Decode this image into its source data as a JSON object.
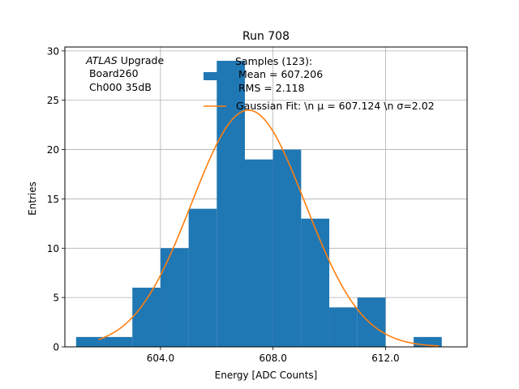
{
  "chart_data": {
    "type": "bar",
    "title": "Run 708",
    "xlabel": "Energy [ADC Counts]",
    "ylabel": "Entries",
    "xlim": [
      600.6,
      614.9
    ],
    "ylim": [
      0,
      30.4
    ],
    "grid": true,
    "x_ticks": [
      {
        "value": 604.0,
        "label": "604.0"
      },
      {
        "value": 608.0,
        "label": "608.0"
      },
      {
        "value": 612.0,
        "label": "612.0"
      }
    ],
    "y_ticks": [
      {
        "value": 0,
        "label": "0"
      },
      {
        "value": 5,
        "label": "5"
      },
      {
        "value": 10,
        "label": "10"
      },
      {
        "value": 15,
        "label": "15"
      },
      {
        "value": 20,
        "label": "20"
      },
      {
        "value": 25,
        "label": "25"
      },
      {
        "value": 30,
        "label": "30"
      }
    ],
    "bin_width": 1.0,
    "bins": [
      {
        "left": 601.0,
        "count": 1
      },
      {
        "left": 602.0,
        "count": 1
      },
      {
        "left": 603.0,
        "count": 6
      },
      {
        "left": 604.0,
        "count": 10
      },
      {
        "left": 605.0,
        "count": 14
      },
      {
        "left": 606.0,
        "count": 29
      },
      {
        "left": 607.0,
        "count": 19
      },
      {
        "left": 608.0,
        "count": 20
      },
      {
        "left": 609.0,
        "count": 13
      },
      {
        "left": 610.0,
        "count": 4
      },
      {
        "left": 611.0,
        "count": 5
      },
      {
        "left": 613.0,
        "count": 1
      }
    ],
    "fit": {
      "mu": 607.124,
      "sigma": 2.02,
      "amplitude": 24.0,
      "x_range": [
        601.8,
        613.9
      ]
    },
    "colors": {
      "histogram": "#1f77b4",
      "fit": "#ff7f0e",
      "grid": "#b0b0b0"
    },
    "annotation": {
      "line1_italic": "ATLAS",
      "line1_rest": " Upgrade",
      "line2": " Board260",
      "line3": " Ch000 35dB"
    },
    "legend": {
      "position": "top-center",
      "hist_label_lines": [
        "Samples (123):",
        " Mean = 607.206",
        " RMS = 2.118"
      ],
      "fit_label": "Gaussian Fit: \\n μ = 607.124 \\n σ=2.02"
    }
  }
}
